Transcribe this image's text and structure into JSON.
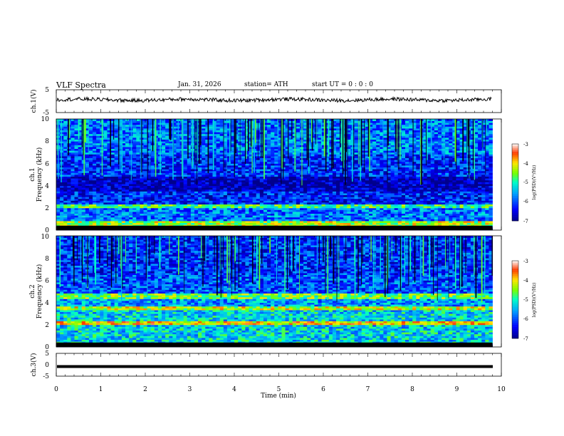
{
  "header": {
    "title": "VLF  Spectra",
    "date": "Jan. 31, 2026",
    "station": "station= ATH",
    "start_ut": "start  UT  =    0  : 0   : 0"
  },
  "chart_data": [
    {
      "type": "line",
      "name": "ch1-waveform",
      "ylabel": "ch.1(V)",
      "ylim": [
        -5,
        5
      ],
      "yticks": [
        "5",
        "-5"
      ],
      "xlim": [
        0,
        10
      ],
      "description_level": 0.6
    },
    {
      "type": "heatmap",
      "name": "ch1-spectrogram",
      "ylabel": "ch.1\nFrequency (kHz)",
      "ylabel_top": "ch.1",
      "ylabel_bottom": "Frequency  (kHz)",
      "ylim": [
        0,
        10
      ],
      "yticks": [
        "0",
        "2",
        "4",
        "6",
        "8",
        "10"
      ],
      "xlim": [
        0,
        9.8
      ],
      "colorbar": {
        "label": "log(PSD)(V²/Hz)",
        "range": [
          -7,
          -3
        ],
        "ticks": [
          "-3",
          "-4",
          "-5",
          "-6",
          "-7"
        ]
      },
      "bands": [
        {
          "freq": [
            0.0,
            0.4
          ],
          "level": -7
        },
        {
          "freq": [
            0.4,
            0.8
          ],
          "level": -4.4
        },
        {
          "freq": [
            0.8,
            2.0
          ],
          "level": -5.8
        },
        {
          "freq": [
            2.0,
            2.3
          ],
          "level": -4.8
        },
        {
          "freq": [
            2.3,
            3.5
          ],
          "level": -6.3
        },
        {
          "freq": [
            3.5,
            4.8
          ],
          "level": -6.8
        },
        {
          "freq": [
            4.8,
            6.8
          ],
          "level": -6.2
        },
        {
          "freq": [
            6.8,
            10.0
          ],
          "level": -5.8
        }
      ]
    },
    {
      "type": "heatmap",
      "name": "ch2-spectrogram",
      "ylabel_top": "ch.2",
      "ylabel_bottom": "Frequency  (kHz)",
      "ylim": [
        0,
        10
      ],
      "yticks": [
        "0",
        "2",
        "4",
        "6",
        "8",
        "10"
      ],
      "xlim": [
        0,
        9.8
      ],
      "colorbar": {
        "label": "log(PSD)(V²/Hz)",
        "range": [
          -7,
          -3
        ],
        "ticks": [
          "-3",
          "-4",
          "-5",
          "-6",
          "-7"
        ]
      },
      "bands": [
        {
          "freq": [
            0.0,
            0.3
          ],
          "level": -7
        },
        {
          "freq": [
            0.3,
            2.0
          ],
          "level": -5.3
        },
        {
          "freq": [
            2.0,
            2.3
          ],
          "level": -4.0
        },
        {
          "freq": [
            2.3,
            3.3
          ],
          "level": -5.3
        },
        {
          "freq": [
            3.3,
            3.7
          ],
          "level": -4.3
        },
        {
          "freq": [
            3.7,
            4.4
          ],
          "level": -5.6
        },
        {
          "freq": [
            4.4,
            4.8
          ],
          "level": -4.6
        },
        {
          "freq": [
            4.8,
            6.5
          ],
          "level": -6.0
        },
        {
          "freq": [
            6.5,
            10.0
          ],
          "level": -6.2
        }
      ]
    },
    {
      "type": "line",
      "name": "ch3-waveform",
      "ylabel": "ch.3(V)",
      "ylim": [
        -5,
        5
      ],
      "yticks": [
        "5",
        "0",
        "-5"
      ],
      "xlim": [
        0,
        10
      ],
      "level": -0.8
    }
  ],
  "xaxis": {
    "label": "Time  (min)",
    "range": [
      0,
      10
    ],
    "ticks": [
      "0",
      "1",
      "2",
      "3",
      "4",
      "5",
      "6",
      "7",
      "8",
      "9",
      "10"
    ]
  }
}
